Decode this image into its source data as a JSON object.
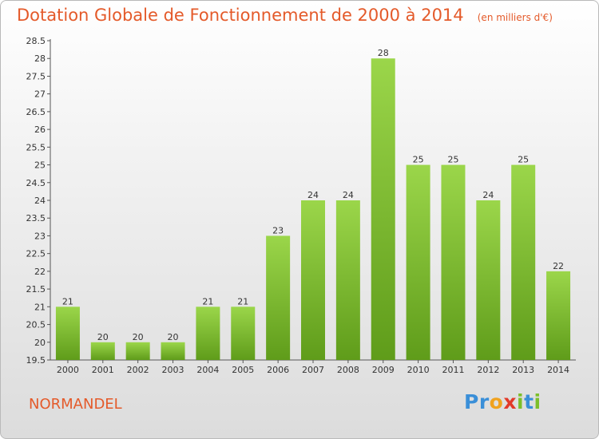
{
  "chart_data": {
    "type": "bar",
    "title": "Dotation Globale de Fonctionnement de 2000 à 2014",
    "unit_note": "(en milliers d'€)",
    "categories": [
      "2000",
      "2001",
      "2002",
      "2003",
      "2004",
      "2005",
      "2006",
      "2007",
      "2008",
      "2009",
      "2010",
      "2011",
      "2012",
      "2013",
      "2014"
    ],
    "values": [
      21,
      20,
      20,
      20,
      21,
      21,
      23,
      24,
      24,
      28,
      25,
      25,
      24,
      25,
      22
    ],
    "ylim": [
      19.5,
      28.5
    ],
    "yticks": [
      "19.5",
      "20",
      "20.5",
      "21",
      "21.5",
      "22",
      "22.5",
      "23",
      "23.5",
      "24",
      "24.5",
      "25",
      "25.5",
      "26",
      "26.5",
      "27",
      "27.5",
      "28",
      "28.5"
    ],
    "grid": false,
    "bar_color": "#7cc22a",
    "bar_color_light": "#9bd64a",
    "bar_color_dark": "#5f9c1a"
  },
  "commune": "NORMANDEL",
  "logo": {
    "letters": [
      "P",
      "r",
      "o",
      "x",
      "i",
      "t",
      "i"
    ],
    "colors": [
      "#3a8fd8",
      "#3a8fd8",
      "#f0a21e",
      "#e23a2a",
      "#7cbf2a",
      "#3a8fd8",
      "#7cbf2a"
    ]
  },
  "colors": {
    "title": "#e45a2a"
  }
}
